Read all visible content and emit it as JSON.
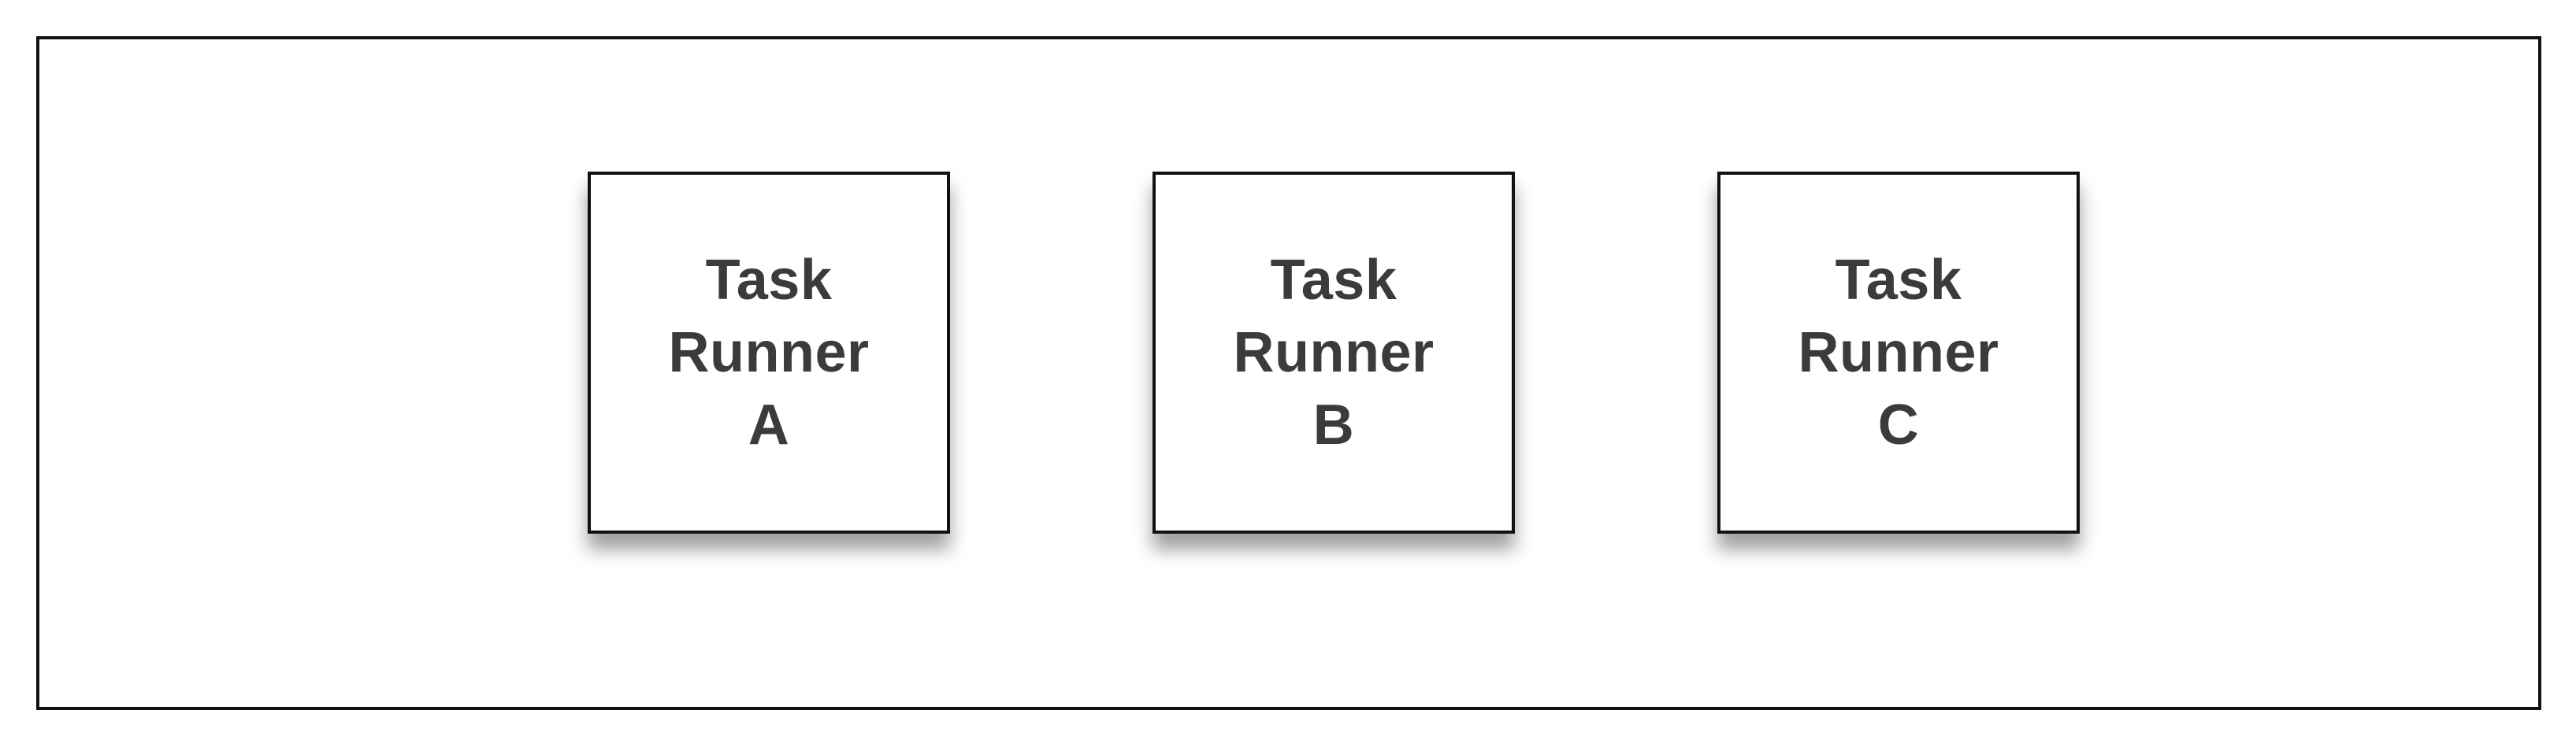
{
  "diagram": {
    "nodes": [
      {
        "line1": "Task",
        "line2": "Runner",
        "line3": "A"
      },
      {
        "line1": "Task",
        "line2": "Runner",
        "line3": "B"
      },
      {
        "line1": "Task",
        "line2": "Runner",
        "line3": "C"
      }
    ],
    "colors": {
      "border": "#111111",
      "text": "#3b3b3b",
      "background": "#ffffff"
    }
  }
}
